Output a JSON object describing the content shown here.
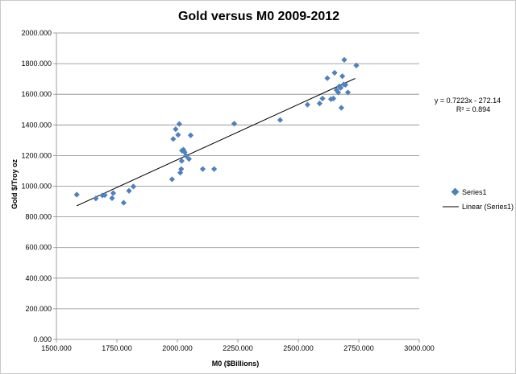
{
  "chart_data": {
    "type": "scatter",
    "title": "Gold versus M0 2009-2012",
    "xlabel": "M0 ($Billions)",
    "ylabel": "Gold $/Troy oz",
    "xlim": [
      1500,
      3000
    ],
    "ylim": [
      0,
      2000
    ],
    "x_ticks": [
      1500,
      1750,
      2000,
      2250,
      2500,
      2750,
      3000
    ],
    "y_ticks": [
      0,
      200,
      400,
      600,
      800,
      1000,
      1200,
      1400,
      1600,
      1800,
      2000
    ],
    "x_tick_labels": [
      "1500.000",
      "1750.000",
      "2000.000",
      "2250.000",
      "2500.000",
      "2750.000",
      "3000.000"
    ],
    "y_tick_labels": [
      "0.000",
      "200.000",
      "400.000",
      "600.000",
      "800.000",
      "1000.000",
      "1200.000",
      "1400.000",
      "1600.000",
      "1800.000",
      "2000.000"
    ],
    "grid": "horizontal",
    "legend_position": "right",
    "series": [
      {
        "name": "Series1",
        "marker": "diamond",
        "color": "#4f81bd",
        "points": [
          [
            1584,
            945
          ],
          [
            1663,
            920
          ],
          [
            1690,
            940
          ],
          [
            1700,
            942
          ],
          [
            1730,
            922
          ],
          [
            1735,
            955
          ],
          [
            1778,
            892
          ],
          [
            1800,
            970
          ],
          [
            1818,
            998
          ],
          [
            1978,
            1045
          ],
          [
            1983,
            1308
          ],
          [
            1993,
            1372
          ],
          [
            2003,
            1335
          ],
          [
            2008,
            1406
          ],
          [
            2012,
            1088
          ],
          [
            2016,
            1112
          ],
          [
            2018,
            1165
          ],
          [
            2019,
            1232
          ],
          [
            2025,
            1238
          ],
          [
            2030,
            1222
          ],
          [
            2036,
            1198
          ],
          [
            2048,
            1178
          ],
          [
            2055,
            1332
          ],
          [
            2105,
            1112
          ],
          [
            2152,
            1112
          ],
          [
            2235,
            1408
          ],
          [
            2425,
            1432
          ],
          [
            2538,
            1532
          ],
          [
            2588,
            1540
          ],
          [
            2600,
            1572
          ],
          [
            2620,
            1705
          ],
          [
            2635,
            1568
          ],
          [
            2645,
            1572
          ],
          [
            2650,
            1740
          ],
          [
            2658,
            1628
          ],
          [
            2665,
            1612
          ],
          [
            2670,
            1652
          ],
          [
            2675,
            1642
          ],
          [
            2678,
            1512
          ],
          [
            2682,
            1718
          ],
          [
            2688,
            1665
          ],
          [
            2690,
            1825
          ],
          [
            2695,
            1662
          ],
          [
            2705,
            1612
          ],
          [
            2740,
            1788
          ]
        ]
      }
    ],
    "trendline": {
      "name": "Linear (Series1)",
      "x_range": [
        1584,
        2735
      ],
      "slope": 0.7223,
      "intercept": -272.14
    },
    "annotations": {
      "equation": "y = 0.7223x - 272.14",
      "r_squared": "R² = 0.894"
    }
  },
  "legend": {
    "series_label": "Series1",
    "trend_label": "Linear (Series1)"
  }
}
